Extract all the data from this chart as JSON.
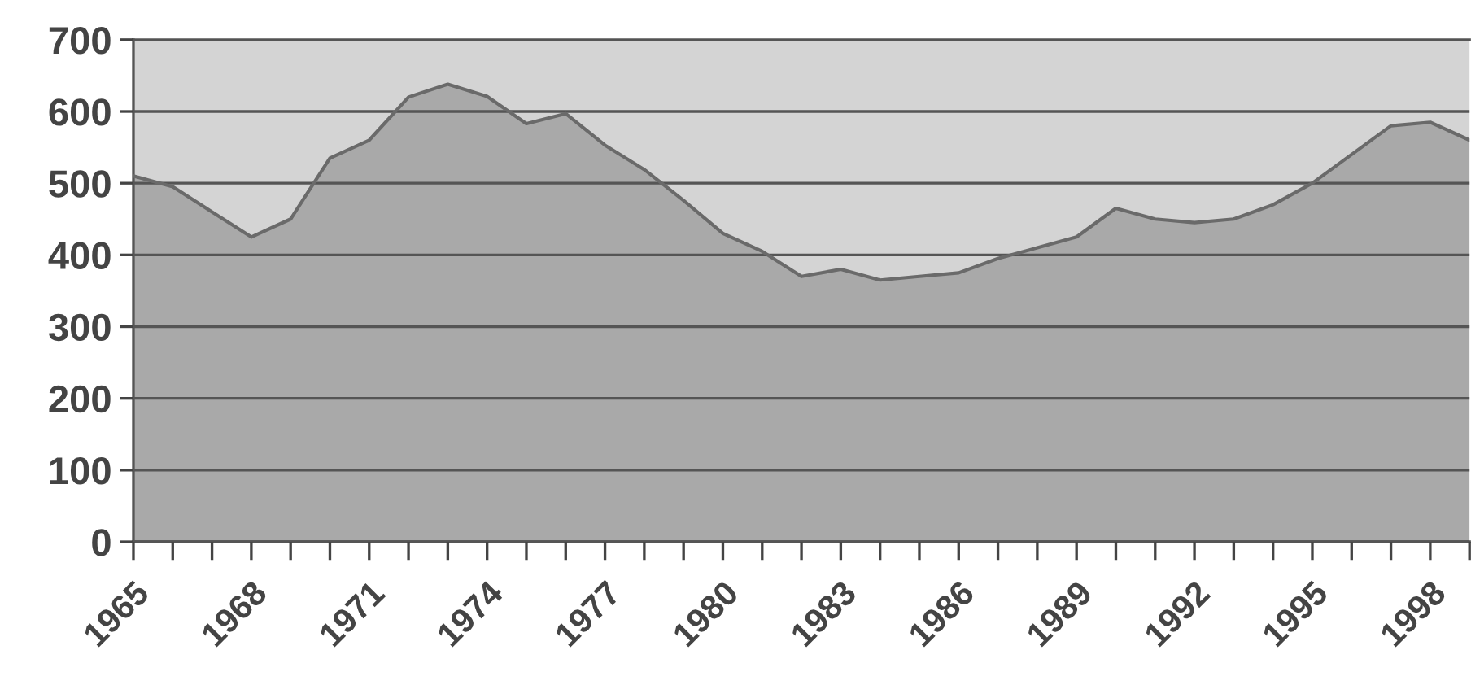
{
  "chart_data": {
    "type": "area",
    "categories": [
      "1965",
      null,
      null,
      "1968",
      null,
      null,
      "1971",
      null,
      null,
      "1974",
      null,
      null,
      "1977",
      null,
      null,
      "1980",
      null,
      null,
      "1983",
      null,
      null,
      "1986",
      null,
      null,
      "1989",
      null,
      null,
      "1992",
      null,
      null,
      "1995",
      null,
      null,
      "1998",
      null
    ],
    "series": [
      {
        "color": "#a9a9a9",
        "values": [
          510,
          495,
          460,
          425,
          450,
          535,
          560,
          620,
          638,
          621,
          583,
          597,
          553,
          519,
          476,
          430,
          405,
          370,
          380,
          365,
          370,
          375,
          395,
          410,
          425,
          465,
          450,
          445,
          450,
          470,
          500,
          540,
          580,
          585,
          560
        ]
      }
    ],
    "ylim": [
      0,
      700
    ],
    "yticks": [
      0,
      100,
      200,
      300,
      400,
      500,
      600,
      700
    ],
    "grid": "y"
  }
}
